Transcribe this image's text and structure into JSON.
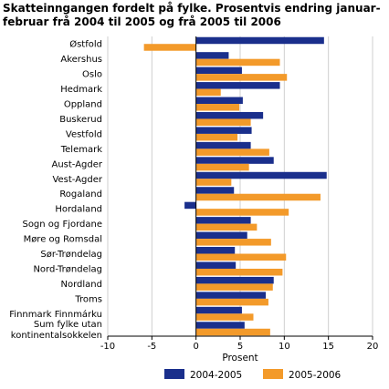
{
  "chart_data": {
    "type": "bar",
    "orientation": "horizontal",
    "title": "Skatteinngangen fordelt på fylke. Prosentvis endring januar-februar frå 2004 til 2005 og frå 2005 til 2006",
    "xlabel": "Prosent",
    "ylabel": "",
    "xlim": [
      -10,
      20
    ],
    "xticks": [
      -10,
      -5,
      0,
      5,
      10,
      15,
      20
    ],
    "grid": "vertical",
    "legend": "bottom",
    "categories": [
      "Østfold",
      "Akershus",
      "Oslo",
      "Hedmark",
      "Oppland",
      "Buskerud",
      "Vestfold",
      "Telemark",
      "Aust-Agder",
      "Vest-Agder",
      "Rogaland",
      "Hordaland",
      "Sogn og Fjordane",
      "Møre og Romsdal",
      "Sør-Trøndelag",
      "Nord-Trøndelag",
      "Nordland",
      "Troms",
      "Finnmark Finnmárku",
      [
        "Sum fylke utan",
        "kontinentalsokkelen"
      ]
    ],
    "series": [
      {
        "name": "2004-2005",
        "color": "#1a2f8c",
        "values": [
          14.5,
          3.7,
          5.2,
          9.5,
          5.3,
          7.6,
          6.3,
          6.2,
          8.8,
          14.8,
          4.3,
          -1.3,
          6.2,
          5.8,
          4.4,
          4.5,
          8.8,
          7.9,
          5.2,
          5.5
        ]
      },
      {
        "name": "2005-2006",
        "color": "#f39a2a",
        "values": [
          -5.9,
          9.5,
          10.3,
          2.8,
          4.9,
          6.2,
          4.7,
          8.3,
          6.0,
          4.0,
          14.1,
          10.5,
          6.9,
          8.5,
          10.2,
          9.8,
          8.7,
          8.2,
          6.5,
          8.4
        ]
      }
    ]
  }
}
